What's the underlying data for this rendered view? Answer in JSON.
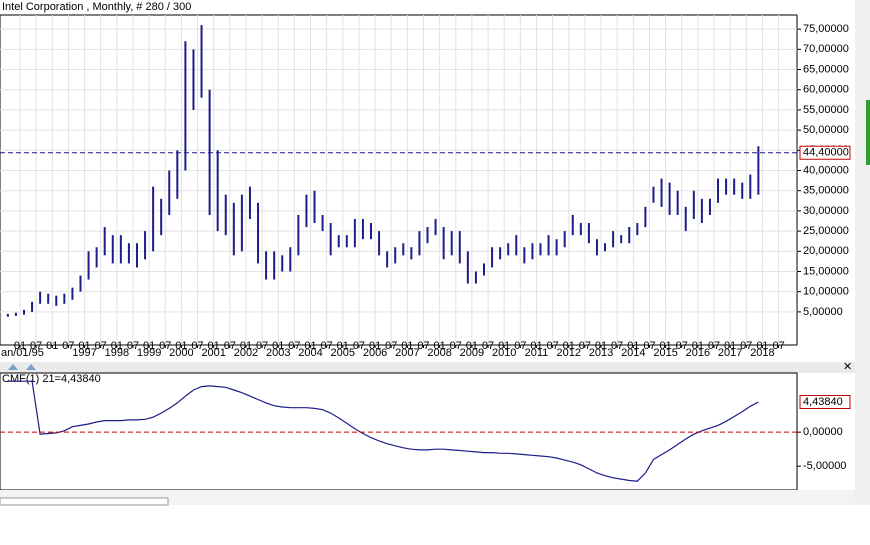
{
  "header": {
    "title": "Intel Corporation   , Monthly, # 280 / 300"
  },
  "chart_data": [
    {
      "type": "range_bar",
      "color": "#1c1c8a",
      "grid": true,
      "x": [
        "1994-07",
        "1994-10",
        "1995-01",
        "1995-04",
        "1995-07",
        "1995-10",
        "1996-01",
        "1996-04",
        "1996-07",
        "1996-10",
        "1997-01",
        "1997-04",
        "1997-07",
        "1997-10",
        "1998-01",
        "1998-04",
        "1998-07",
        "1998-10",
        "1999-01",
        "1999-04",
        "1999-07",
        "1999-10",
        "2000-01",
        "2000-04",
        "2000-07",
        "2000-10",
        "2001-01",
        "2001-04",
        "2001-07",
        "2001-10",
        "2002-01",
        "2002-04",
        "2002-07",
        "2002-10",
        "2003-01",
        "2003-04",
        "2003-07",
        "2003-10",
        "2004-01",
        "2004-04",
        "2004-07",
        "2004-10",
        "2005-01",
        "2005-04",
        "2005-07",
        "2005-10",
        "2006-01",
        "2006-04",
        "2006-07",
        "2006-10",
        "2007-01",
        "2007-04",
        "2007-07",
        "2007-10",
        "2008-01",
        "2008-04",
        "2008-07",
        "2008-10",
        "2009-01",
        "2009-04",
        "2009-07",
        "2009-10",
        "2010-01",
        "2010-04",
        "2010-07",
        "2010-10",
        "2011-01",
        "2011-04",
        "2011-07",
        "2011-10",
        "2012-01",
        "2012-04",
        "2012-07",
        "2012-10",
        "2013-01",
        "2013-04",
        "2013-07",
        "2013-10",
        "2014-01",
        "2014-04",
        "2014-07",
        "2014-10",
        "2015-01",
        "2015-04",
        "2015-07",
        "2015-10",
        "2016-01",
        "2016-04",
        "2016-07",
        "2016-10",
        "2017-01",
        "2017-04",
        "2017-07",
        "2017-10"
      ],
      "low": [
        3.8,
        4,
        4.3,
        5,
        7,
        7,
        6.5,
        7,
        8,
        10,
        13,
        16,
        19,
        17,
        17,
        17,
        16,
        18,
        20,
        24,
        29,
        33,
        40,
        55,
        58,
        29,
        25,
        24,
        19,
        20,
        28,
        17,
        13,
        13,
        15,
        15,
        19,
        26,
        27,
        25,
        19,
        21,
        21,
        21,
        23,
        23,
        19,
        16,
        17,
        19,
        18,
        19,
        22,
        24,
        18,
        19,
        17,
        12,
        12,
        14,
        16,
        18,
        19,
        19,
        17,
        18,
        19,
        19,
        19,
        21,
        24,
        24,
        22,
        19,
        20,
        21,
        22,
        22,
        24,
        26,
        32,
        31,
        29,
        29,
        25,
        28,
        27,
        29,
        32,
        34,
        34,
        33,
        33,
        34
      ],
      "high": [
        4.5,
        4.8,
        5.5,
        7.5,
        10,
        9.5,
        9,
        9.5,
        11,
        14,
        20,
        21,
        26,
        24,
        24,
        22,
        22,
        25,
        36,
        33,
        40,
        45,
        72,
        70,
        76,
        60,
        45,
        34,
        32,
        34,
        36,
        32,
        20,
        20,
        19,
        21,
        29,
        34,
        35,
        29,
        27,
        24,
        24,
        28,
        28,
        27,
        25,
        20,
        21,
        22,
        21,
        25,
        26,
        28,
        26,
        25,
        25,
        20,
        15,
        17,
        21,
        21,
        22,
        24,
        21,
        22,
        22,
        24,
        23,
        25,
        29,
        27,
        27,
        23,
        22,
        25,
        24,
        26,
        27,
        31,
        36,
        38,
        37,
        35,
        31,
        35,
        33,
        33,
        38,
        38,
        38,
        37,
        39,
        46
      ],
      "ylim": [
        -3.2,
        78.5
      ],
      "yticks": [
        {
          "value": 5,
          "label": "5,00000"
        },
        {
          "value": 10,
          "label": "10,00000"
        },
        {
          "value": 15,
          "label": "15,00000"
        },
        {
          "value": 20,
          "label": "20,00000"
        },
        {
          "value": 25,
          "label": "25,00000"
        },
        {
          "value": 30,
          "label": "30,00000"
        },
        {
          "value": 35,
          "label": "35,00000"
        },
        {
          "value": 40,
          "label": "40,00000"
        },
        {
          "value": 45,
          "label": "45,00000"
        },
        {
          "value": 50,
          "label": "50,00000"
        },
        {
          "value": 55,
          "label": "55,00000"
        },
        {
          "value": 60,
          "label": "60,00000"
        },
        {
          "value": 65,
          "label": "65,00000"
        },
        {
          "value": 70,
          "label": "70,00000"
        },
        {
          "value": 75,
          "label": "75,00000"
        }
      ],
      "price_line": {
        "value": 44.4,
        "label": "44,40000",
        "color": "#1c1c8a"
      },
      "xticks": [
        {
          "value": "1995-01",
          "label": "01"
        },
        {
          "value": "1995-07",
          "label": "07"
        },
        {
          "value": "1996-01",
          "label": "01"
        },
        {
          "value": "1996-07",
          "label": "07"
        },
        {
          "value": "1997-01",
          "label": "01"
        },
        {
          "value": "1997-07",
          "label": "07"
        },
        {
          "value": "1998-01",
          "label": "01"
        },
        {
          "value": "1998-07",
          "label": "07"
        },
        {
          "value": "1999-01",
          "label": "01"
        },
        {
          "value": "1999-07",
          "label": "07"
        },
        {
          "value": "2000-01",
          "label": "01"
        },
        {
          "value": "2000-07",
          "label": "07"
        },
        {
          "value": "2001-01",
          "label": "01"
        },
        {
          "value": "2001-07",
          "label": "07"
        },
        {
          "value": "2002-01",
          "label": "01"
        },
        {
          "value": "2002-07",
          "label": "07"
        },
        {
          "value": "2003-01",
          "label": "01"
        },
        {
          "value": "2003-07",
          "label": "07"
        },
        {
          "value": "2004-01",
          "label": "01"
        },
        {
          "value": "2004-07",
          "label": "07"
        },
        {
          "value": "2005-01",
          "label": "01"
        },
        {
          "value": "2005-07",
          "label": "07"
        },
        {
          "value": "2006-01",
          "label": "01"
        },
        {
          "value": "2006-07",
          "label": "07"
        },
        {
          "value": "2007-01",
          "label": "01"
        },
        {
          "value": "2007-07",
          "label": "07"
        },
        {
          "value": "2008-01",
          "label": "01"
        },
        {
          "value": "2008-07",
          "label": "07"
        },
        {
          "value": "2009-01",
          "label": "01"
        },
        {
          "value": "2009-07",
          "label": "07"
        },
        {
          "value": "2010-01",
          "label": "01"
        },
        {
          "value": "2010-07",
          "label": "07"
        },
        {
          "value": "2011-01",
          "label": "01"
        },
        {
          "value": "2011-07",
          "label": "07"
        },
        {
          "value": "2012-01",
          "label": "01"
        },
        {
          "value": "2012-07",
          "label": "07"
        },
        {
          "value": "2013-01",
          "label": "01"
        },
        {
          "value": "2013-07",
          "label": "07"
        },
        {
          "value": "2014-01",
          "label": "01"
        },
        {
          "value": "2014-07",
          "label": "07"
        },
        {
          "value": "2015-01",
          "label": "01"
        },
        {
          "value": "2015-07",
          "label": "07"
        },
        {
          "value": "2016-01",
          "label": "01"
        },
        {
          "value": "2016-07",
          "label": "07"
        },
        {
          "value": "2017-01",
          "label": "01"
        },
        {
          "value": "2017-07",
          "label": "07"
        },
        {
          "value": "2018-01",
          "label": "01"
        },
        {
          "value": "2018-07",
          "label": "07"
        }
      ],
      "year_labels": [
        {
          "value": "1995-01",
          "label": "an/01/95"
        },
        {
          "value": "1997-01",
          "label": "1997"
        },
        {
          "value": "1998-01",
          "label": "1998"
        },
        {
          "value": "1999-01",
          "label": "1999"
        },
        {
          "value": "2000-01",
          "label": "2000"
        },
        {
          "value": "2001-01",
          "label": "2001"
        },
        {
          "value": "2002-01",
          "label": "2002"
        },
        {
          "value": "2003-01",
          "label": "2003"
        },
        {
          "value": "2004-01",
          "label": "2004"
        },
        {
          "value": "2005-01",
          "label": "2005"
        },
        {
          "value": "2006-01",
          "label": "2006"
        },
        {
          "value": "2007-01",
          "label": "2007"
        },
        {
          "value": "2008-01",
          "label": "2008"
        },
        {
          "value": "2009-01",
          "label": "2009"
        },
        {
          "value": "2010-01",
          "label": "2010"
        },
        {
          "value": "2011-01",
          "label": "2011"
        },
        {
          "value": "2012-01",
          "label": "2012"
        },
        {
          "value": "2013-01",
          "label": "2013"
        },
        {
          "value": "2014-01",
          "label": "2014"
        },
        {
          "value": "2015-01",
          "label": "2015"
        },
        {
          "value": "2016-01",
          "label": "2016"
        },
        {
          "value": "2017-01",
          "label": "2017"
        },
        {
          "value": "2018-01",
          "label": "2018"
        }
      ]
    },
    {
      "type": "line",
      "legend": "CMF(1) 21=4,43840",
      "color": "#1c1c8a",
      "x": [
        "1994-07",
        "1994-10",
        "1995-01",
        "1995-04",
        "1995-07",
        "1995-10",
        "1996-01",
        "1996-04",
        "1996-07",
        "1996-10",
        "1997-01",
        "1997-04",
        "1997-07",
        "1997-10",
        "1998-01",
        "1998-04",
        "1998-07",
        "1998-10",
        "1999-01",
        "1999-04",
        "1999-07",
        "1999-10",
        "2000-01",
        "2000-04",
        "2000-07",
        "2000-10",
        "2001-01",
        "2001-04",
        "2001-07",
        "2001-10",
        "2002-01",
        "2002-04",
        "2002-07",
        "2002-10",
        "2003-01",
        "2003-04",
        "2003-07",
        "2003-10",
        "2004-01",
        "2004-04",
        "2004-07",
        "2004-10",
        "2005-01",
        "2005-04",
        "2005-07",
        "2005-10",
        "2006-01",
        "2006-04",
        "2006-07",
        "2006-10",
        "2007-01",
        "2007-04",
        "2007-07",
        "2007-10",
        "2008-01",
        "2008-04",
        "2008-07",
        "2008-10",
        "2009-01",
        "2009-04",
        "2009-07",
        "2009-10",
        "2010-01",
        "2010-04",
        "2010-07",
        "2010-10",
        "2011-01",
        "2011-04",
        "2011-07",
        "2011-10",
        "2012-01",
        "2012-04",
        "2012-07",
        "2012-10",
        "2013-01",
        "2013-04",
        "2013-07",
        "2013-10",
        "2014-01",
        "2014-04",
        "2014-07",
        "2014-10",
        "2015-01",
        "2015-04",
        "2015-07",
        "2015-10",
        "2016-01",
        "2016-04",
        "2016-07",
        "2016-10",
        "2017-01",
        "2017-04",
        "2017-07",
        "2017-10"
      ],
      "values": [
        7.5,
        7.5,
        7.5,
        7.5,
        -0.3,
        -0.2,
        -0.1,
        0.2,
        0.8,
        1.0,
        1.2,
        1.5,
        1.7,
        1.7,
        1.7,
        1.8,
        1.8,
        1.9,
        2.2,
        2.8,
        3.5,
        4.3,
        5.3,
        6.2,
        6.7,
        6.8,
        6.7,
        6.6,
        6.2,
        5.8,
        5.3,
        4.8,
        4.3,
        3.9,
        3.7,
        3.6,
        3.6,
        3.6,
        3.5,
        3.3,
        2.8,
        2.1,
        1.3,
        0.5,
        -0.2,
        -0.8,
        -1.3,
        -1.7,
        -2.0,
        -2.3,
        -2.5,
        -2.6,
        -2.6,
        -2.5,
        -2.5,
        -2.6,
        -2.7,
        -2.8,
        -2.9,
        -3.0,
        -3.0,
        -3.1,
        -3.1,
        -3.2,
        -3.3,
        -3.4,
        -3.5,
        -3.6,
        -3.8,
        -4.1,
        -4.4,
        -4.8,
        -5.4,
        -6.0,
        -6.4,
        -6.7,
        -6.9,
        -7.1,
        -7.2,
        -6.0,
        -4.0,
        -3.3,
        -2.6,
        -1.8,
        -1.0,
        -0.3,
        0.2,
        0.6,
        1.0,
        1.6,
        2.3,
        3.0,
        3.8,
        4.4384
      ],
      "ylim": [
        -8.5,
        8.7
      ],
      "yticks": [
        {
          "value": 0,
          "label": "0,00000"
        },
        {
          "value": -5,
          "label": "-5,00000"
        }
      ],
      "zero_line_color": "#c00000",
      "last_label": {
        "value": 4.4384,
        "label": "4,43840"
      }
    }
  ]
}
